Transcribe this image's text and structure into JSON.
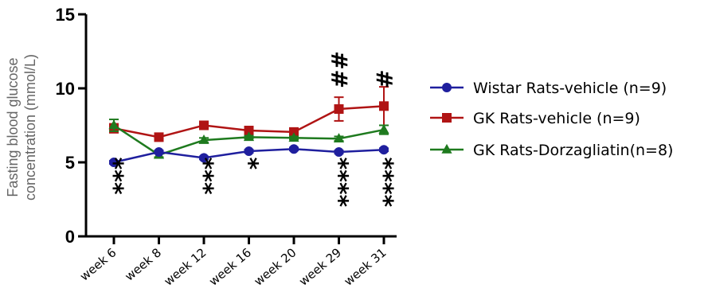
{
  "chart_data": {
    "type": "line",
    "title": "",
    "xlabel": "",
    "ylabel_lines": [
      "Fasting blood glucose",
      "concentration (mmol/L)"
    ],
    "categories": [
      "week 6",
      "week 8",
      "week 12",
      "week 16",
      "week 20",
      "week 29",
      "week 31"
    ],
    "ylim": [
      0,
      15
    ],
    "yticks": [
      "0",
      "5",
      "10",
      "15"
    ],
    "grid": false,
    "legend_position": "right",
    "series": [
      {
        "name": "Wistar Rats-vehicle (n=9)",
        "color": "#1f1f9e",
        "marker": "circle",
        "values": [
          5.0,
          5.7,
          5.3,
          5.75,
          5.9,
          5.7,
          5.85
        ],
        "errors": [
          0.1,
          0.1,
          0.1,
          0.1,
          0.1,
          0.1,
          0.1
        ]
      },
      {
        "name": "GK Rats-vehicle (n=9)",
        "color": "#b01414",
        "marker": "square",
        "values": [
          7.3,
          6.7,
          7.5,
          7.15,
          7.05,
          8.6,
          8.8
        ],
        "errors": [
          0.3,
          0.15,
          0.15,
          0.15,
          0.15,
          0.8,
          1.3
        ]
      },
      {
        "name": "GK Rats-Dorzagliatin(n=8)",
        "color": "#1e7a1e",
        "marker": "triangle",
        "values": [
          7.5,
          5.5,
          6.5,
          6.7,
          6.65,
          6.6,
          7.2
        ],
        "errors": [
          0.4,
          0.15,
          0.15,
          0.1,
          0.1,
          0.15,
          0.3
        ]
      }
    ],
    "annotations": [
      {
        "x": "week 6",
        "text": "***",
        "position": "below"
      },
      {
        "x": "week 12",
        "text": "***",
        "position": "below"
      },
      {
        "x": "week 16",
        "text": "*",
        "position": "below"
      },
      {
        "x": "week 29",
        "text": "****",
        "position": "below"
      },
      {
        "x": "week 31",
        "text": "****",
        "position": "below"
      },
      {
        "x": "week 29",
        "text": "##",
        "position": "above"
      },
      {
        "x": "week 31",
        "text": "#",
        "position": "above"
      }
    ]
  }
}
